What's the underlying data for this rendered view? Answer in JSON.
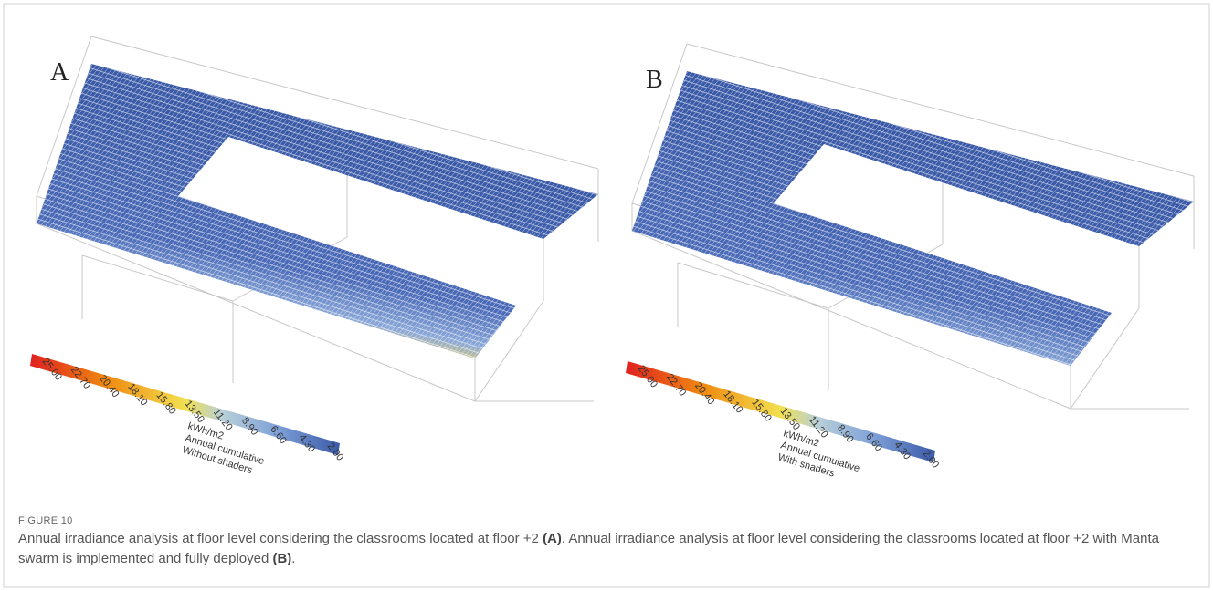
{
  "figure": {
    "panels": [
      {
        "label": "A",
        "legend": {
          "ticks": [
            "25.00",
            "22.70",
            "20.40",
            "18.10",
            "15.80",
            "13.50",
            "11.20",
            "8.90",
            "6.60",
            "4.30",
            "2.00"
          ],
          "lines": [
            "kWh/m2",
            "Annual cumulative",
            "Without shaders"
          ]
        }
      },
      {
        "label": "B",
        "legend": {
          "ticks": [
            "25.00",
            "22.70",
            "20.40",
            "18.10",
            "15.80",
            "13.50",
            "11.20",
            "8.90",
            "6.60",
            "4.30",
            "2.00"
          ],
          "lines": [
            "kWh/m2",
            "Annual cumulative",
            "With shaders"
          ]
        }
      }
    ],
    "caption": {
      "label": "FIGURE 10",
      "parts": [
        "Annual irradiance analysis at floor level considering the classrooms located at floor +2 ",
        "(A)",
        ". Annual irradiance analysis at floor level considering the classrooms located at floor +2 with Manta swarm is implemented and fully deployed ",
        "(B)",
        "."
      ]
    }
  }
}
